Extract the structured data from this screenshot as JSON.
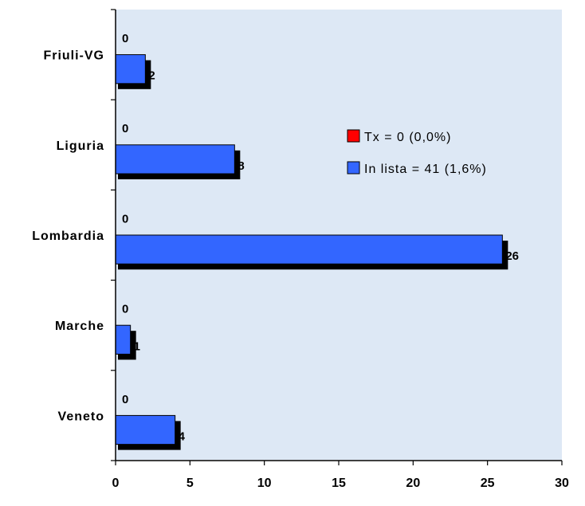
{
  "chart_data": {
    "type": "bar",
    "orientation": "horizontal",
    "categories": [
      "Friuli-VG",
      "Liguria",
      "Lombardia",
      "Marche",
      "Veneto"
    ],
    "series": [
      {
        "name": "Tx = 0 (0,0%)",
        "values": [
          0,
          0,
          0,
          0,
          0
        ],
        "color": "#ff0000"
      },
      {
        "name": "In lista = 41 (1,6%)",
        "values": [
          2,
          8,
          26,
          1,
          4
        ],
        "color": "#3366ff"
      }
    ],
    "xlim": [
      0,
      30
    ],
    "xticks": [
      0,
      5,
      10,
      15,
      20,
      25,
      30
    ],
    "legend": "top-right",
    "grid": false,
    "bar_shadow_color": "#000000",
    "background_color": "#dde8f5"
  }
}
